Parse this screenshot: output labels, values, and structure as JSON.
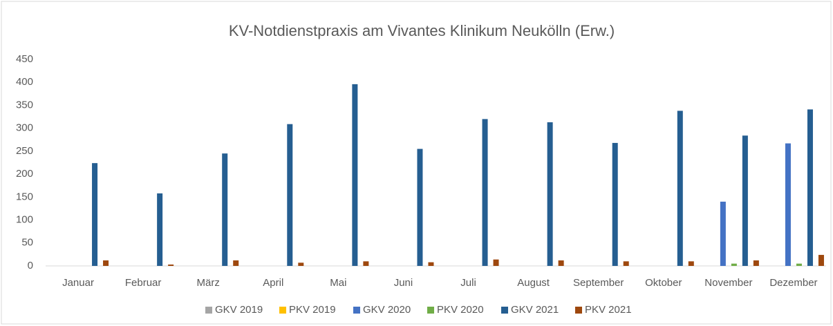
{
  "chart_data": {
    "type": "bar",
    "title": "KV-Notdienstpraxis am Vivantes Klinikum Neukölln (Erw.)",
    "categories": [
      "Januar",
      "Februar",
      "März",
      "April",
      "Mai",
      "Juni",
      "Juli",
      "August",
      "September",
      "Oktober",
      "November",
      "Dezember"
    ],
    "series": [
      {
        "name": "GKV 2019",
        "color": "#a5a5a5",
        "values": [
          0,
          0,
          0,
          0,
          0,
          0,
          0,
          0,
          0,
          0,
          0,
          0
        ]
      },
      {
        "name": "PKV 2019",
        "color": "#ffc000",
        "values": [
          0,
          0,
          0,
          0,
          0,
          0,
          0,
          0,
          0,
          0,
          0,
          0
        ]
      },
      {
        "name": "GKV 2020",
        "color": "#4472c4",
        "values": [
          0,
          0,
          0,
          0,
          0,
          0,
          0,
          0,
          0,
          0,
          140,
          267
        ]
      },
      {
        "name": "PKV 2020",
        "color": "#70ad47",
        "values": [
          0,
          0,
          0,
          0,
          0,
          0,
          0,
          0,
          0,
          0,
          5,
          5
        ]
      },
      {
        "name": "GKV 2021",
        "color": "#255e91",
        "values": [
          224,
          158,
          245,
          309,
          396,
          255,
          320,
          313,
          268,
          338,
          284,
          341
        ]
      },
      {
        "name": "PKV 2021",
        "color": "#9e480e",
        "values": [
          12,
          3,
          12,
          7,
          10,
          8,
          14,
          12,
          10,
          10,
          12,
          24
        ]
      }
    ],
    "ylim": [
      0,
      450
    ],
    "yticks": [
      0,
      50,
      100,
      150,
      200,
      250,
      300,
      350,
      400,
      450
    ],
    "grid": false,
    "legend": "bottom"
  }
}
